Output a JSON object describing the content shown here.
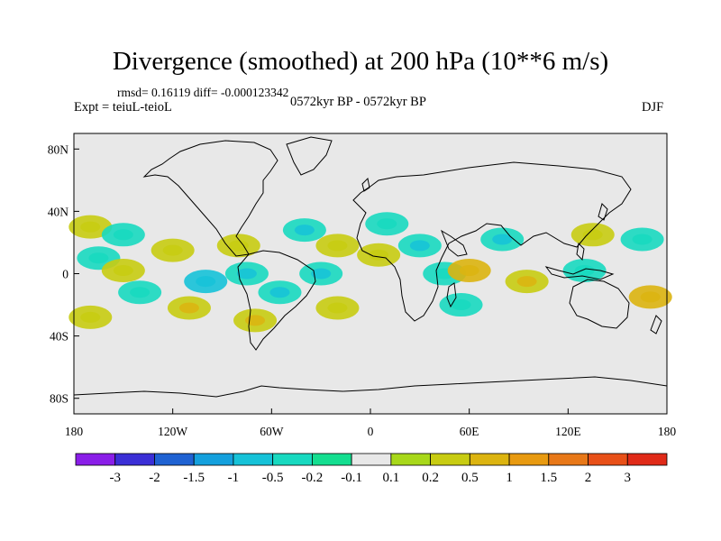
{
  "header": {
    "title": "Divergence (smoothed) at 200 hPa (10**6 m/s)",
    "stats": "rmsd= 0.16119 diff= -0.000123342",
    "experiment": "Expt = teiuL-teioL",
    "period": "0572kyr BP - 0572kyr BP",
    "season": "DJF"
  },
  "axes": {
    "x_ticks": [
      {
        "label": "180",
        "lon": -180
      },
      {
        "label": "120W",
        "lon": -120
      },
      {
        "label": "60W",
        "lon": -60
      },
      {
        "label": "0",
        "lon": 0
      },
      {
        "label": "60E",
        "lon": 60
      },
      {
        "label": "120E",
        "lon": 120
      },
      {
        "label": "180",
        "lon": 180
      }
    ],
    "y_ticks": [
      {
        "label": "80N",
        "lat": 80
      },
      {
        "label": "40N",
        "lat": 40
      },
      {
        "label": "0",
        "lat": 0
      },
      {
        "label": "40S",
        "lat": -40
      },
      {
        "label": "80S",
        "lat": -80
      }
    ],
    "lon_range": [
      -180,
      180
    ],
    "lat_range": [
      -90,
      90
    ]
  },
  "colorbar": {
    "colors": [
      "#8a1ee8",
      "#3b2fd6",
      "#1f62d2",
      "#14a0dd",
      "#16c2d8",
      "#18d9c0",
      "#14de90",
      "#e8e8e8",
      "#a8d81a",
      "#c8cc12",
      "#dcb410",
      "#e89a10",
      "#e87818",
      "#e85018",
      "#e02a18"
    ],
    "labels": [
      "-3",
      "-2",
      "-1.5",
      "-1",
      "-0.5",
      "-0.2",
      "-0.1",
      "0.1",
      "0.2",
      "0.5",
      "1",
      "1.5",
      "2",
      "3"
    ]
  },
  "field_anomalies": [
    {
      "lon": -170,
      "lat": 30,
      "value": 0.3
    },
    {
      "lon": -150,
      "lat": 25,
      "value": -0.3
    },
    {
      "lon": -165,
      "lat": 10,
      "value": -0.25
    },
    {
      "lon": -170,
      "lat": -28,
      "value": 0.3
    },
    {
      "lon": -140,
      "lat": -12,
      "value": -0.3
    },
    {
      "lon": -150,
      "lat": 2,
      "value": 0.3
    },
    {
      "lon": -120,
      "lat": 15,
      "value": 0.3
    },
    {
      "lon": -100,
      "lat": -5,
      "value": -0.5
    },
    {
      "lon": -110,
      "lat": -22,
      "value": 0.4
    },
    {
      "lon": -80,
      "lat": 18,
      "value": 0.3
    },
    {
      "lon": -75,
      "lat": 0,
      "value": -0.4
    },
    {
      "lon": -55,
      "lat": -12,
      "value": -0.4
    },
    {
      "lon": -70,
      "lat": -30,
      "value": 0.4
    },
    {
      "lon": -40,
      "lat": 28,
      "value": -0.4
    },
    {
      "lon": -20,
      "lat": 18,
      "value": 0.3
    },
    {
      "lon": -30,
      "lat": 0,
      "value": -0.4
    },
    {
      "lon": -20,
      "lat": -22,
      "value": 0.3
    },
    {
      "lon": 10,
      "lat": 32,
      "value": -0.3
    },
    {
      "lon": 5,
      "lat": 12,
      "value": 0.3
    },
    {
      "lon": 30,
      "lat": 18,
      "value": -0.4
    },
    {
      "lon": 45,
      "lat": 0,
      "value": -0.3
    },
    {
      "lon": 60,
      "lat": 2,
      "value": 0.6
    },
    {
      "lon": 55,
      "lat": -20,
      "value": -0.3
    },
    {
      "lon": 80,
      "lat": 22,
      "value": -0.4
    },
    {
      "lon": 95,
      "lat": -5,
      "value": 0.4
    },
    {
      "lon": 130,
      "lat": 2,
      "value": -0.3
    },
    {
      "lon": 135,
      "lat": 25,
      "value": 0.3
    },
    {
      "lon": 165,
      "lat": 22,
      "value": -0.3
    },
    {
      "lon": 170,
      "lat": -15,
      "value": 0.6
    }
  ]
}
